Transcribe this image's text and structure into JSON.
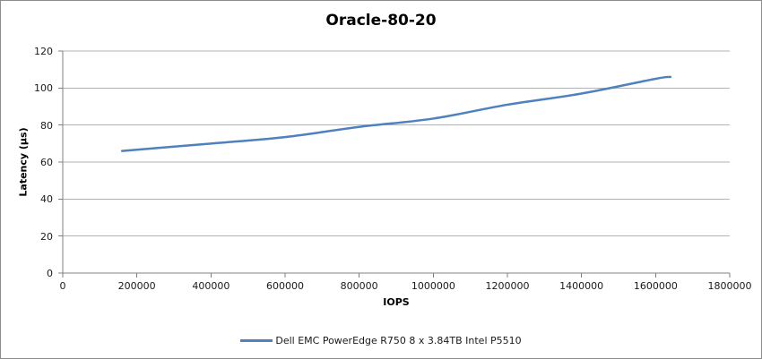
{
  "chart_data": {
    "type": "line",
    "title": "Oracle-80-20",
    "xlabel": "IOPS",
    "ylabel": "Latency (µs)",
    "xlim": [
      0,
      1800000
    ],
    "ylim": [
      0,
      120
    ],
    "x_ticks": [
      {
        "value": 0,
        "label": "0"
      },
      {
        "value": 200000,
        "label": "200000"
      },
      {
        "value": 400000,
        "label": "400000"
      },
      {
        "value": 600000,
        "label": "600000"
      },
      {
        "value": 800000,
        "label": "800000"
      },
      {
        "value": 1000000,
        "label": "1000000"
      },
      {
        "value": 1200000,
        "label": "1200000"
      },
      {
        "value": 1400000,
        "label": "1400000"
      },
      {
        "value": 1600000,
        "label": "1600000"
      },
      {
        "value": 1800000,
        "label": "1800000"
      }
    ],
    "y_ticks": [
      {
        "value": 0,
        "label": "0"
      },
      {
        "value": 20,
        "label": "20"
      },
      {
        "value": 40,
        "label": "40"
      },
      {
        "value": 60,
        "label": "60"
      },
      {
        "value": 80,
        "label": "80"
      },
      {
        "value": 100,
        "label": "100"
      },
      {
        "value": 120,
        "label": "120"
      }
    ],
    "grid": "horizontal",
    "legend_position": "bottom",
    "series": [
      {
        "name": "Dell EMC PowerEdge R750 8 x 3.84TB Intel P5510",
        "color": "#4F81BD",
        "x": [
          160000,
          400000,
          600000,
          800000,
          1000000,
          1200000,
          1400000,
          1600000,
          1640000
        ],
        "y": [
          66,
          70,
          73.5,
          79,
          83.5,
          91,
          97,
          105,
          106
        ]
      }
    ],
    "style": {
      "grid_color": "#b3b3b3",
      "axis_color": "#808080",
      "border_color": "#8c8c8c",
      "tick_label_color": "#1a1a1a"
    }
  }
}
